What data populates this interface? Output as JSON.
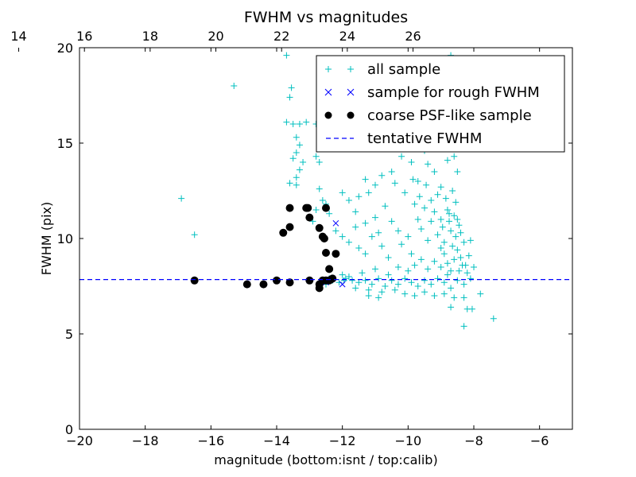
{
  "chart_data": {
    "type": "scatter",
    "title": "FWHM vs magnitudes",
    "xlabel": "magnitude (bottom:isnt / top:calib)",
    "ylabel": "FWHM (pix)",
    "xlim": [
      -20,
      -5
    ],
    "ylim": [
      0,
      20
    ],
    "x_ticks": [
      -20,
      -18,
      -16,
      -14,
      -12,
      -10,
      -8,
      -6
    ],
    "x_tick_labels": [
      "−20",
      "−18",
      "−16",
      "−14",
      "−12",
      "−10",
      "−8",
      "−6"
    ],
    "y_ticks": [
      0,
      5,
      10,
      15,
      20
    ],
    "y_tick_labels": [
      "0",
      "5",
      "10",
      "15",
      "20"
    ],
    "top_axis": {
      "offset_from_bottom": 35.85,
      "ticks": [
        14,
        16,
        18,
        20,
        22,
        24,
        26
      ],
      "tick_labels": [
        "14",
        "16",
        "18",
        "20",
        "22",
        "24",
        "26"
      ]
    },
    "grid": false,
    "legend_position": "top-right",
    "legend": [
      {
        "label": "all sample",
        "marker": "plus",
        "color": "#00bfbf"
      },
      {
        "label": "sample for rough FWHM",
        "marker": "x",
        "color": "#0000ff"
      },
      {
        "label": "coarse PSF-like sample",
        "marker": "circle",
        "color": "#000000"
      },
      {
        "label": "tentative FWHM",
        "marker": "dashed-line",
        "color": "#0000ff"
      }
    ],
    "series": [
      {
        "name": "all sample",
        "marker": "plus",
        "color": "#00bfbf",
        "points": [
          [
            -16.9,
            12.1
          ],
          [
            -16.5,
            10.2
          ],
          [
            -15.3,
            18.0
          ],
          [
            -13.7,
            19.6
          ],
          [
            -13.55,
            17.9
          ],
          [
            -13.6,
            17.4
          ],
          [
            -13.7,
            16.1
          ],
          [
            -13.5,
            16.0
          ],
          [
            -13.3,
            16.0
          ],
          [
            -13.1,
            16.1
          ],
          [
            -13.4,
            15.3
          ],
          [
            -13.3,
            14.9
          ],
          [
            -13.4,
            14.5
          ],
          [
            -13.5,
            14.2
          ],
          [
            -13.2,
            14.0
          ],
          [
            -13.3,
            13.6
          ],
          [
            -13.4,
            13.2
          ],
          [
            -13.6,
            12.9
          ],
          [
            -13.4,
            12.8
          ],
          [
            -12.8,
            16.0
          ],
          [
            -12.7,
            15.2
          ],
          [
            -12.8,
            14.3
          ],
          [
            -12.7,
            14.0
          ],
          [
            -12.7,
            12.6
          ],
          [
            -12.6,
            12.0
          ],
          [
            -12.5,
            11.8
          ],
          [
            -12.4,
            11.3
          ],
          [
            -12.3,
            15.8
          ],
          [
            -12.0,
            12.4
          ],
          [
            -11.8,
            12.0
          ],
          [
            -11.5,
            12.2
          ],
          [
            -11.3,
            13.1
          ],
          [
            -11.2,
            12.4
          ],
          [
            -11.0,
            12.8
          ],
          [
            -10.8,
            13.3
          ],
          [
            -10.5,
            13.5
          ],
          [
            -10.2,
            14.3
          ],
          [
            -9.9,
            14.0
          ],
          [
            -9.7,
            13.0
          ],
          [
            -9.5,
            14.6
          ],
          [
            -9.4,
            13.9
          ],
          [
            -9.2,
            13.5
          ],
          [
            -9.0,
            12.7
          ],
          [
            -8.9,
            14.8
          ],
          [
            -8.8,
            14.1
          ],
          [
            -8.7,
            19.6
          ],
          [
            -8.6,
            14.3
          ],
          [
            -8.5,
            13.5
          ],
          [
            -12.8,
            11.5
          ],
          [
            -12.9,
            10.9
          ],
          [
            -12.2,
            10.4
          ],
          [
            -12.0,
            10.1
          ],
          [
            -11.8,
            9.8
          ],
          [
            -11.6,
            10.6
          ],
          [
            -11.5,
            9.5
          ],
          [
            -11.3,
            9.2
          ],
          [
            -11.1,
            10.1
          ],
          [
            -10.9,
            10.3
          ],
          [
            -10.8,
            9.6
          ],
          [
            -10.6,
            9.0
          ],
          [
            -10.5,
            10.9
          ],
          [
            -10.3,
            10.4
          ],
          [
            -10.2,
            9.7
          ],
          [
            -10.0,
            10.1
          ],
          [
            -9.9,
            9.2
          ],
          [
            -9.8,
            11.8
          ],
          [
            -9.7,
            11.0
          ],
          [
            -9.6,
            10.5
          ],
          [
            -9.5,
            11.6
          ],
          [
            -9.4,
            9.9
          ],
          [
            -9.3,
            10.9
          ],
          [
            -9.2,
            11.4
          ],
          [
            -9.1,
            10.2
          ],
          [
            -9.0,
            11.0
          ],
          [
            -8.95,
            10.6
          ],
          [
            -8.9,
            9.8
          ],
          [
            -8.85,
            12.1
          ],
          [
            -8.8,
            11.5
          ],
          [
            -8.75,
            10.9
          ],
          [
            -8.7,
            10.4
          ],
          [
            -8.65,
            9.6
          ],
          [
            -8.6,
            11.2
          ],
          [
            -8.55,
            10.1
          ],
          [
            -8.5,
            9.4
          ],
          [
            -8.45,
            10.7
          ],
          [
            -8.4,
            9.0
          ],
          [
            -8.35,
            8.6
          ],
          [
            -8.3,
            9.8
          ],
          [
            -8.2,
            8.2
          ],
          [
            -8.1,
            9.9
          ],
          [
            -8.0,
            8.5
          ],
          [
            -8.6,
            8.9
          ],
          [
            -8.7,
            8.3
          ],
          [
            -8.8,
            8.7
          ],
          [
            -8.9,
            9.2
          ],
          [
            -9.0,
            8.5
          ],
          [
            -9.2,
            8.8
          ],
          [
            -9.4,
            8.4
          ],
          [
            -9.6,
            8.9
          ],
          [
            -9.8,
            8.6
          ],
          [
            -10.0,
            8.3
          ],
          [
            -10.3,
            8.5
          ],
          [
            -10.6,
            8.1
          ],
          [
            -11.0,
            8.4
          ],
          [
            -11.4,
            8.2
          ],
          [
            -11.8,
            8.0
          ],
          [
            -12.0,
            8.1
          ],
          [
            -11.9,
            7.9
          ],
          [
            -11.7,
            7.8
          ],
          [
            -11.5,
            7.7
          ],
          [
            -11.3,
            7.8
          ],
          [
            -11.1,
            7.6
          ],
          [
            -10.9,
            7.9
          ],
          [
            -10.7,
            7.5
          ],
          [
            -10.5,
            7.8
          ],
          [
            -10.3,
            7.6
          ],
          [
            -10.1,
            7.9
          ],
          [
            -9.9,
            7.7
          ],
          [
            -9.7,
            7.5
          ],
          [
            -9.5,
            7.8
          ],
          [
            -9.3,
            7.6
          ],
          [
            -9.1,
            7.9
          ],
          [
            -8.9,
            7.7
          ],
          [
            -8.7,
            7.4
          ],
          [
            -8.5,
            7.8
          ],
          [
            -8.3,
            7.6
          ],
          [
            -8.1,
            7.9
          ],
          [
            -11.6,
            7.4
          ],
          [
            -11.2,
            7.3
          ],
          [
            -10.8,
            7.2
          ],
          [
            -10.4,
            7.3
          ],
          [
            -10.1,
            7.1
          ],
          [
            -9.8,
            7.0
          ],
          [
            -9.5,
            7.2
          ],
          [
            -9.2,
            7.0
          ],
          [
            -8.9,
            7.1
          ],
          [
            -8.6,
            6.9
          ],
          [
            -8.3,
            6.9
          ],
          [
            -8.7,
            6.4
          ],
          [
            -8.2,
            6.3
          ],
          [
            -8.05,
            6.3
          ],
          [
            -8.3,
            5.4
          ],
          [
            -7.4,
            5.8
          ],
          [
            -7.8,
            7.1
          ],
          [
            -10.9,
            6.9
          ],
          [
            -11.2,
            7.0
          ],
          [
            -12.4,
            7.9
          ],
          [
            -12.5,
            7.6
          ],
          [
            -12.3,
            7.8
          ],
          [
            -12.1,
            7.7
          ],
          [
            -11.95,
            7.8
          ],
          [
            -9.0,
            9.5
          ],
          [
            -8.8,
            8.1
          ],
          [
            -8.45,
            8.3
          ],
          [
            -8.25,
            8.6
          ],
          [
            -8.15,
            9.1
          ],
          [
            -8.55,
            11.9
          ],
          [
            -8.65,
            12.5
          ],
          [
            -8.75,
            11.3
          ],
          [
            -8.5,
            11.0
          ],
          [
            -8.4,
            10.3
          ],
          [
            -9.1,
            12.3
          ],
          [
            -9.3,
            12.0
          ],
          [
            -9.45,
            12.8
          ],
          [
            -9.65,
            12.2
          ],
          [
            -9.85,
            13.1
          ],
          [
            -10.1,
            12.4
          ],
          [
            -10.4,
            12.9
          ],
          [
            -10.7,
            11.7
          ],
          [
            -11.0,
            11.1
          ],
          [
            -11.3,
            10.8
          ],
          [
            -11.6,
            11.4
          ]
        ]
      },
      {
        "name": "sample for rough FWHM",
        "marker": "x",
        "color": "#0000ff",
        "points": [
          [
            -12.2,
            10.8
          ],
          [
            -12.0,
            7.6
          ],
          [
            -12.3,
            7.9
          ],
          [
            -12.5,
            7.7
          ],
          [
            -13.0,
            7.8
          ],
          [
            -13.6,
            7.7
          ],
          [
            -14.0,
            7.8
          ],
          [
            -14.9,
            7.6
          ],
          [
            -16.5,
            7.8
          ],
          [
            -12.7,
            7.5
          ]
        ]
      },
      {
        "name": "coarse PSF-like sample",
        "marker": "circle",
        "color": "#000000",
        "points": [
          [
            -16.5,
            7.8
          ],
          [
            -14.9,
            7.6
          ],
          [
            -14.4,
            7.6
          ],
          [
            -14.0,
            7.8
          ],
          [
            -13.6,
            7.7
          ],
          [
            -13.0,
            7.8
          ],
          [
            -12.7,
            7.4
          ],
          [
            -12.7,
            7.6
          ],
          [
            -12.6,
            7.8
          ],
          [
            -12.5,
            7.8
          ],
          [
            -12.4,
            7.8
          ],
          [
            -12.3,
            7.9
          ],
          [
            -13.8,
            10.3
          ],
          [
            -13.6,
            10.6
          ],
          [
            -13.6,
            11.6
          ],
          [
            -13.1,
            11.6
          ],
          [
            -13.05,
            11.6
          ],
          [
            -13.0,
            11.1
          ],
          [
            -12.7,
            10.55
          ],
          [
            -12.6,
            10.1
          ],
          [
            -12.55,
            10.0
          ],
          [
            -12.5,
            9.25
          ],
          [
            -12.5,
            11.6
          ],
          [
            -12.4,
            8.4
          ],
          [
            -12.2,
            9.2
          ],
          [
            -12.35,
            7.85
          ]
        ]
      },
      {
        "name": "tentative FWHM",
        "type": "hline",
        "color": "#0000ff",
        "style": "dashed",
        "y": 7.85
      }
    ]
  }
}
